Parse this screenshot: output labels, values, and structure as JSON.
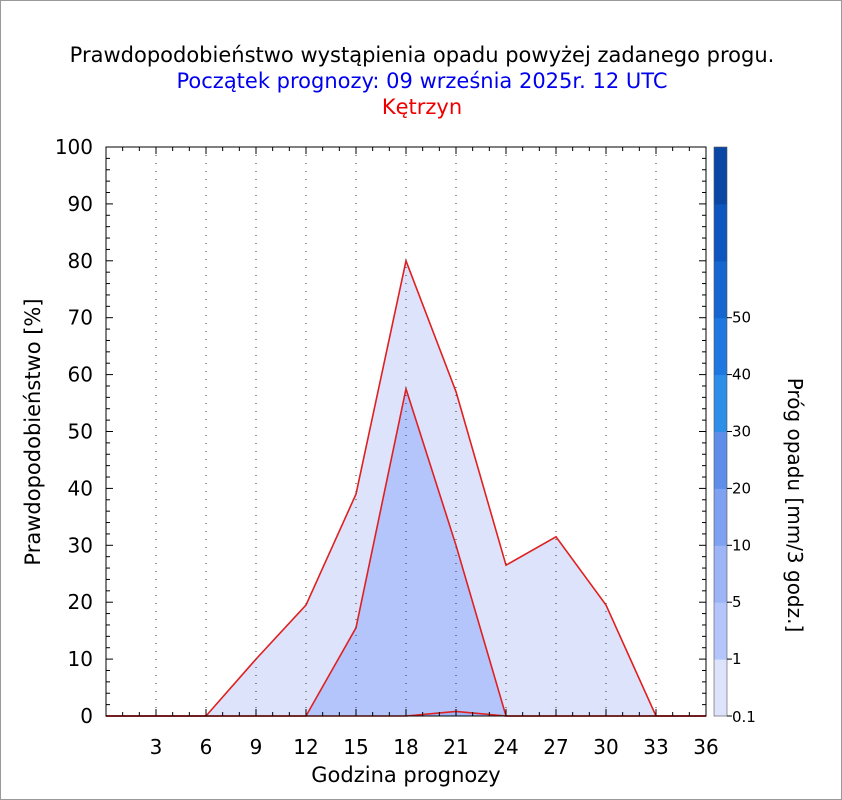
{
  "title": "Prawdopodobieństwo wystąpienia opadu powyżej zadanego progu.",
  "subtitle": "Początek prognozy: 09 września 2025r. 12 UTC",
  "location": "Kętrzyn",
  "colors": {
    "title": "#000000",
    "subtitle": "#0000ee",
    "location": "#ee0000",
    "series_line": "#e02020"
  },
  "chart_data": {
    "type": "area",
    "xlabel": "Godzina prognozy",
    "ylabel": "Prawdopodobieństwo [%]",
    "ylim": [
      0,
      100
    ],
    "xlim": [
      0,
      36
    ],
    "x_ticks": [
      3,
      6,
      9,
      12,
      15,
      18,
      21,
      24,
      27,
      30,
      33,
      36
    ],
    "y_ticks": [
      0,
      10,
      20,
      30,
      40,
      50,
      60,
      70,
      80,
      90,
      100
    ],
    "grid": "dotted vertical lines",
    "x": [
      0,
      3,
      6,
      9,
      12,
      15,
      18,
      21,
      24,
      27,
      30,
      33,
      36
    ],
    "series": [
      {
        "threshold": "0.1",
        "color": "#dde3fb",
        "values": [
          0,
          0,
          0,
          10,
          19.5,
          39,
          80,
          57,
          26.5,
          31.5,
          19.5,
          0,
          0
        ]
      },
      {
        "threshold": "1",
        "color": "#b4c5fb",
        "values": [
          0,
          0,
          0,
          0,
          0,
          15.5,
          57.5,
          30,
          0,
          0,
          0,
          0,
          0
        ]
      },
      {
        "threshold": "5",
        "color": "#9db4f7",
        "values": [
          0,
          0,
          0,
          0,
          0,
          0,
          0,
          0.8,
          0,
          0,
          0,
          0,
          0
        ]
      }
    ],
    "colorbar": {
      "label": "Próg opadu [mm/3 godz.]",
      "tick_labels": [
        "0.1",
        "1",
        "5",
        "10",
        "20",
        "30",
        "40",
        "50"
      ],
      "colors": [
        "#dde3fb",
        "#b4c5fb",
        "#9db4f7",
        "#7fa1f1",
        "#5e8ee9",
        "#2f8ee8",
        "#1f78df",
        "#1566cf",
        "#0d56bd",
        "#0a47a5"
      ]
    }
  }
}
